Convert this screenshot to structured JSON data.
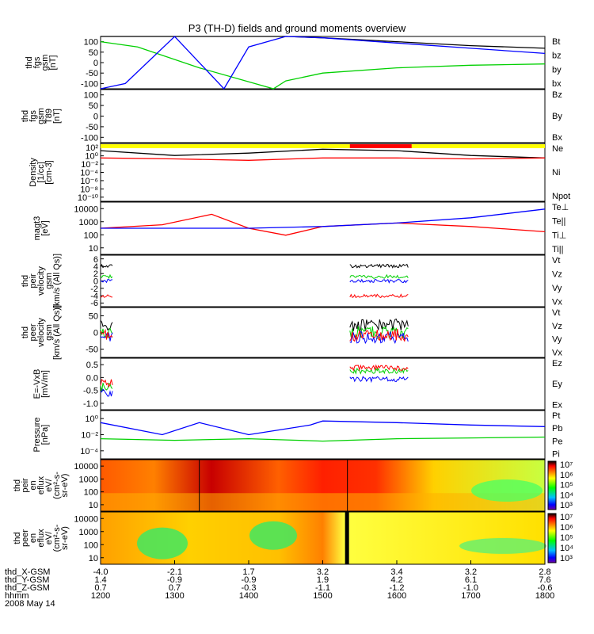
{
  "title": "P3 (TH-D) fields and ground moments overview",
  "colors": {
    "black": "#000000",
    "red": "#ff0000",
    "green": "#00d000",
    "blue": "#0000ff",
    "yellow": "#ffff00"
  },
  "panels": [
    {
      "id": "fgs",
      "ylabel": [
        "thd",
        "fgs",
        "gsm",
        "[nT]"
      ],
      "ticks": [
        "100",
        "50",
        "0",
        "-50",
        "-100"
      ],
      "ylim": [
        -100,
        100
      ],
      "log": false,
      "legend": [
        {
          "text": "Bt",
          "color": "black"
        },
        {
          "text": "bz",
          "color": "red"
        },
        {
          "text": "by",
          "color": "green"
        },
        {
          "text": "bx",
          "color": "blue"
        }
      ]
    },
    {
      "id": "fgh",
      "ylabel": [
        "thd",
        "fgs",
        "gsm",
        "T89",
        "[nT]"
      ],
      "ticks": [
        "100",
        "50",
        "0",
        "-50",
        "-100"
      ],
      "ylim": [
        -100,
        100
      ],
      "log": false,
      "legend": [
        {
          "text": "Bz",
          "color": "red"
        },
        {
          "text": "By",
          "color": "green"
        },
        {
          "text": "Bx",
          "color": "blue"
        }
      ]
    },
    {
      "id": "density",
      "ylabel": [
        "Density",
        "[1/cc]",
        "[cm-3]"
      ],
      "ticks": [
        "10²",
        "10⁰",
        "10⁻²",
        "10⁻⁴",
        "10⁻⁶",
        "10⁻⁸",
        "10⁻¹⁰"
      ],
      "ylim": [
        -10,
        2
      ],
      "log": true,
      "legend": [
        {
          "text": "Ne",
          "color": "red"
        },
        {
          "text": "Ni",
          "color": "black"
        },
        {
          "text": "Npot",
          "color": "blue"
        }
      ]
    },
    {
      "id": "temp",
      "ylabel": [
        "magt3",
        "[eV]"
      ],
      "ticks": [
        "10000",
        "1000",
        "100",
        "10"
      ],
      "ylim": [
        1,
        4
      ],
      "log": true,
      "legend": [
        {
          "text": "Te⊥",
          "color": "red"
        },
        {
          "text": "Te||",
          "color": "black"
        },
        {
          "text": "Ti⊥",
          "color": "blue"
        },
        {
          "text": "Ti||",
          "color": "green"
        }
      ]
    },
    {
      "id": "vi",
      "ylabel": [
        "thd",
        "peir",
        "velocity",
        "gsm",
        "[km/s (All Qs)]"
      ],
      "ticks": [
        "6",
        "4",
        "2",
        "0",
        "-2",
        "-4",
        "-6"
      ],
      "ylim": [
        -6,
        6
      ],
      "log": false,
      "legend": [
        {
          "text": "Vt",
          "color": "black"
        },
        {
          "text": "Vz",
          "color": "red"
        },
        {
          "text": "Vy",
          "color": "green"
        },
        {
          "text": "Vx",
          "color": "blue"
        }
      ]
    },
    {
      "id": "ve",
      "ylabel": [
        "thd",
        "peer",
        "velocity",
        "gsm",
        "[km/s (All Qs)]"
      ],
      "ticks": [
        "50",
        "0",
        "-50"
      ],
      "ylim": [
        -100,
        100
      ],
      "log": false,
      "legend": [
        {
          "text": "Vt",
          "color": "black"
        },
        {
          "text": "Vz",
          "color": "red"
        },
        {
          "text": "Vy",
          "color": "green"
        },
        {
          "text": "Vx",
          "color": "blue"
        }
      ]
    },
    {
      "id": "efield",
      "ylabel": [
        "E=-VxB",
        "[mV/m]"
      ],
      "ticks": [
        "0.5",
        "0.0",
        "-0.5",
        "-1.0"
      ],
      "ylim": [
        -1,
        0.6
      ],
      "log": false,
      "legend": [
        {
          "text": "Ez",
          "color": "red"
        },
        {
          "text": "Ey",
          "color": "green"
        },
        {
          "text": "Ex",
          "color": "blue"
        }
      ]
    },
    {
      "id": "pressure",
      "ylabel": [
        "Pressure",
        "[nPa]"
      ],
      "ticks": [
        "10⁰",
        "10⁻²",
        "10⁻⁴"
      ],
      "ylim": [
        -5,
        1
      ],
      "log": true,
      "legend": [
        {
          "text": "Pt",
          "color": "black"
        },
        {
          "text": "Pb",
          "color": "red"
        },
        {
          "text": "Pe",
          "color": "green"
        },
        {
          "text": "Pi",
          "color": "blue"
        }
      ]
    },
    {
      "id": "ispec",
      "ylabel": [
        "thd",
        "peir",
        "en",
        "eflux",
        "eV/",
        "(cm²-s-",
        "sr-eV)"
      ],
      "ticks": [
        "10000",
        "1000",
        "100",
        "10"
      ],
      "ylim": [
        1,
        4.3
      ],
      "log": true,
      "colorbar": [
        "10⁷",
        "10⁶",
        "10⁵",
        "10⁴",
        "10³"
      ]
    },
    {
      "id": "espec",
      "ylabel": [
        "thd",
        "peer",
        "en",
        "eflux",
        "eV/",
        "(cm²-s-",
        "sr-eV)"
      ],
      "ticks": [
        "10000",
        "1000",
        "100",
        "10"
      ],
      "ylim": [
        0.8,
        4.3
      ],
      "log": true,
      "colorbar": [
        "10⁷",
        "10⁶",
        "10⁵",
        "10⁴",
        "10³"
      ]
    }
  ],
  "xaxis": {
    "row_labels": [
      "thd_X-GSM",
      "thd_Y-GSM",
      "thd_Z-GSM",
      "hhmm",
      "2008 May 14"
    ],
    "columns": [
      [
        "-4.0",
        "1.4",
        "0.7",
        "1200"
      ],
      [
        "-2.1",
        "-0.9",
        "0.7",
        "1300"
      ],
      [
        "1.7",
        "-0.9",
        "-0.3",
        "1400"
      ],
      [
        "3.2",
        "1.9",
        "-1.1",
        "1500"
      ],
      [
        "3.4",
        "4.2",
        "-1.2",
        "1600"
      ],
      [
        "3.2",
        "6.1",
        "-1.0",
        "1700"
      ],
      [
        "2.8",
        "7.6",
        "-0.6",
        "1800"
      ]
    ]
  },
  "chart_data": {
    "type": "line",
    "title": "P3 (TH-D) fields and ground moments overview",
    "x_time_hhmm": [
      "1200",
      "1300",
      "1400",
      "1500",
      "1600",
      "1700",
      "1800"
    ],
    "xlabel": "hhmm",
    "series": [
      {
        "panel": "fgs",
        "name": "Bt",
        "x": [
          1200,
          1330,
          1430,
          1500,
          1600,
          1700,
          1800
        ],
        "values": [
          100,
          100,
          100,
          95,
          80,
          65,
          55
        ]
      },
      {
        "panel": "fgs",
        "name": "by",
        "x": [
          1200,
          1230,
          1320,
          1420,
          1430,
          1500,
          1600,
          1700,
          1800
        ],
        "values": [
          80,
          60,
          -20,
          -100,
          -70,
          -40,
          -20,
          -10,
          -5
        ]
      },
      {
        "panel": "fgs",
        "name": "bx",
        "x": [
          1200,
          1220,
          1300,
          1340,
          1400,
          1430,
          1500,
          1600,
          1700,
          1800
        ],
        "values": [
          -100,
          -80,
          100,
          -100,
          60,
          100,
          95,
          75,
          55,
          35
        ]
      },
      {
        "panel": "density",
        "name": "Ni",
        "x": [
          1200,
          1300,
          1400,
          1500,
          1600,
          1700,
          1800
        ],
        "values": [
          0.5,
          -0.5,
          0,
          0.8,
          0.5,
          -0.5,
          -1
        ]
      },
      {
        "panel": "density",
        "name": "Ne",
        "x": [
          1200,
          1300,
          1400,
          1500,
          1600,
          1700,
          1800
        ],
        "values": [
          -1,
          -1.2,
          -1.5,
          -1,
          -1,
          -1.2,
          -1
        ]
      },
      {
        "panel": "temp",
        "name": "Te⊥",
        "x": [
          1200,
          1250,
          1330,
          1400,
          1430,
          1500,
          1600,
          1700,
          1800
        ],
        "values": [
          2.5,
          2.7,
          3.3,
          2.5,
          2.1,
          2.6,
          2.8,
          2.6,
          2.3
        ]
      },
      {
        "panel": "temp",
        "name": "Ti⊥",
        "x": [
          1200,
          1300,
          1400,
          1500,
          1600,
          1700,
          1800
        ],
        "values": [
          2.5,
          2.5,
          2.5,
          2.6,
          2.8,
          3.1,
          3.6
        ]
      },
      {
        "panel": "pressure",
        "name": "Pi",
        "x": [
          1200,
          1250,
          1320,
          1400,
          1450,
          1500,
          1600,
          1700,
          1800
        ],
        "values": [
          -0.5,
          -2,
          -0.5,
          -2,
          -0.8,
          -0.3,
          -0.5,
          -0.8,
          -1
        ]
      },
      {
        "panel": "pressure",
        "name": "Pe",
        "x": [
          1200,
          1300,
          1400,
          1500,
          1600,
          1700,
          1800
        ],
        "values": [
          -2.5,
          -2.7,
          -2.5,
          -2.8,
          -2.5,
          -2.4,
          -2.3
        ]
      }
    ]
  }
}
